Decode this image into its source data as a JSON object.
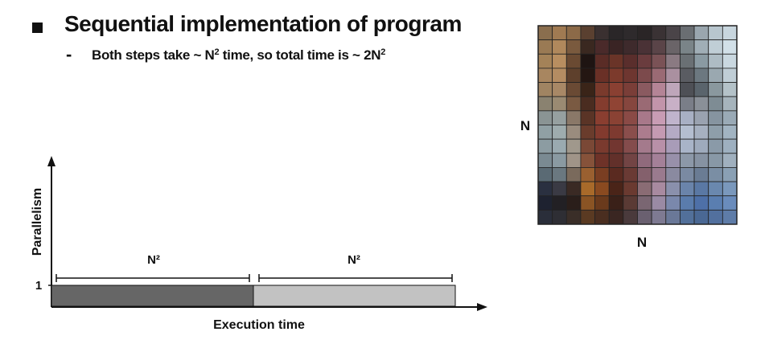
{
  "slide": {
    "heading": "Sequential implementation of program",
    "subpoint_prefix": "Both steps take ~ N",
    "subpoint_sup1": "2",
    "subpoint_middle": " time, so total time is ~ 2N",
    "subpoint_sup2": "2"
  },
  "timeline": {
    "y_axis_label": "Parallelism",
    "x_axis_label": "Execution time",
    "y_tick_label": "1",
    "phases": [
      {
        "label": "N²",
        "color": "#666666"
      },
      {
        "label": "N²",
        "color": "#c2c2c2"
      }
    ]
  },
  "grid": {
    "left_label": "N",
    "bottom_label": "N",
    "cells": [
      [
        "#8a6e4e",
        "#a07a52",
        "#8c6a48",
        "#5a4030",
        "#3a3030",
        "#2a2628",
        "#2e2a2c",
        "#2a2526",
        "#3a3234",
        "#4a4448",
        "#6a6e72",
        "#9aa6ae",
        "#b8c6ce",
        "#c8d6de"
      ],
      [
        "#9a7a54",
        "#b0885c",
        "#7a5a3e",
        "#3a2820",
        "#4a2a2a",
        "#3a2424",
        "#3e2a2c",
        "#4a3236",
        "#5a4448",
        "#6a6468",
        "#7a8488",
        "#a0aeb6",
        "#c0ced6",
        "#d2e0e8"
      ],
      [
        "#a48258",
        "#b88e60",
        "#6a4a32",
        "#1e1412",
        "#5a2c26",
        "#6a3428",
        "#5a2e2c",
        "#6a3c3e",
        "#7a5256",
        "#8a7a82",
        "#6a7074",
        "#8a9aa2",
        "#aebcc4",
        "#cad8e0"
      ],
      [
        "#a88660",
        "#b48c62",
        "#5e402c",
        "#241612",
        "#6a3026",
        "#7c3a2c",
        "#6e3630",
        "#7c4a4c",
        "#9a6a74",
        "#aa90a0",
        "#5a5c62",
        "#6c7880",
        "#9aa8b0",
        "#c0ced6"
      ],
      [
        "#a08462",
        "#a88866",
        "#6a4a34",
        "#3a2418",
        "#7a3a2c",
        "#8a4032",
        "#7a3e38",
        "#8a5a60",
        "#b48496",
        "#bea6ba",
        "#4e5056",
        "#5a646c",
        "#8a989e",
        "#b4c2c8"
      ],
      [
        "#8a8270",
        "#9a8a72",
        "#7a5a42",
        "#4a2c20",
        "#843c2e",
        "#904434",
        "#86463e",
        "#9a6a74",
        "#c294aa",
        "#c8b0c6",
        "#7a7e88",
        "#8a9098",
        "#7e8c94",
        "#a6b4bc"
      ],
      [
        "#8a9494",
        "#96a0a0",
        "#8a7868",
        "#5a3426",
        "#8a3e30",
        "#8a4234",
        "#8a4a46",
        "#a8788a",
        "#c89cb4",
        "#c0b4cc",
        "#a8b0c4",
        "#9aa2b0",
        "#8694a0",
        "#9aaab6"
      ],
      [
        "#90a0a4",
        "#9eacae",
        "#9a8c7e",
        "#6a3c2c",
        "#823a2e",
        "#7e3a30",
        "#8a4e4c",
        "#ac7c8e",
        "#c49ab2",
        "#b4aac4",
        "#b4bed0",
        "#a6b0c0",
        "#8e9eaa",
        "#a2b4c2"
      ],
      [
        "#8c9ca2",
        "#9aaab0",
        "#a0988c",
        "#7a4836",
        "#7a3a2e",
        "#723630",
        "#844c4c",
        "#a47a8c",
        "#b890a8",
        "#a89cb8",
        "#a8b4c8",
        "#9eaabc",
        "#8a9aa8",
        "#9eb0c0"
      ],
      [
        "#7a8a92",
        "#8a9aa2",
        "#a09488",
        "#86523a",
        "#6e3228",
        "#62302a",
        "#724444",
        "#906a7c",
        "#a48098",
        "#9890aa",
        "#8c98a8",
        "#8692a2",
        "#8898a6",
        "#a0b0be"
      ],
      [
        "#5a6a74",
        "#6a7880",
        "#7a6a5c",
        "#9a6030",
        "#7a3e22",
        "#5a2a20",
        "#6a3a34",
        "#84606c",
        "#9a7a8e",
        "#8a8aa0",
        "#7a8aa2",
        "#6a7c94",
        "#7a8ea4",
        "#8aa0b4"
      ],
      [
        "#2a3040",
        "#3a3a44",
        "#3a2a24",
        "#a86a2a",
        "#8a4a20",
        "#4a2418",
        "#6a3a30",
        "#8a6c74",
        "#a88aa0",
        "#8a90ac",
        "#6a84aa",
        "#5a78a4",
        "#6a88ae",
        "#7a98bc"
      ],
      [
        "#1e2230",
        "#222024",
        "#2a1e1a",
        "#8a5424",
        "#6a3a1c",
        "#3a2018",
        "#5a3a34",
        "#7a6672",
        "#9a8aa4",
        "#7a88ac",
        "#5a7cac",
        "#4e70a8",
        "#5a7eb0",
        "#6a8cbc"
      ],
      [
        "#2a2e3a",
        "#2e2e34",
        "#3a2e28",
        "#5a3a22",
        "#4a2e20",
        "#3a2622",
        "#4a3a3c",
        "#6a6070",
        "#7e7a92",
        "#6a7898",
        "#52709a",
        "#4a6894",
        "#52709e",
        "#5e7ca8"
      ]
    ]
  }
}
